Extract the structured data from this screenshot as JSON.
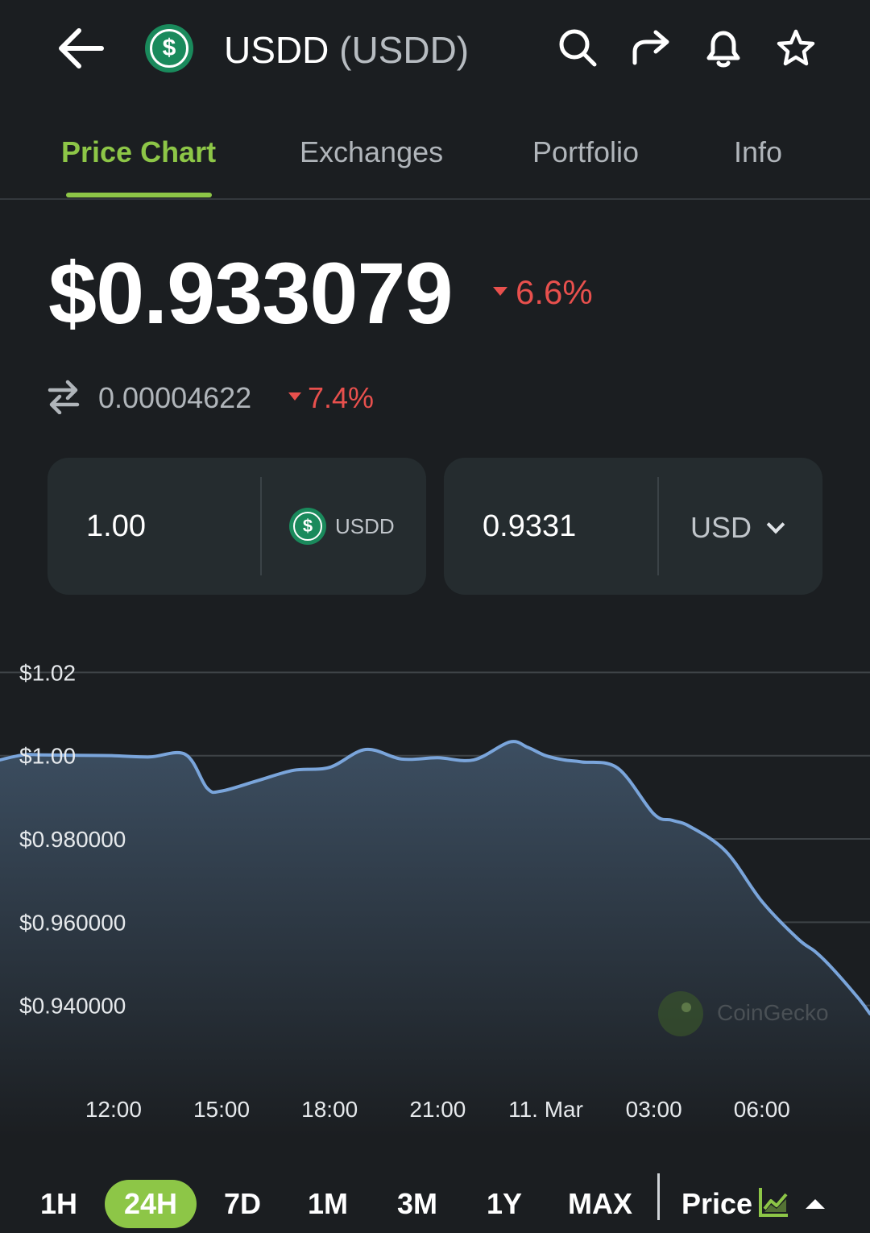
{
  "header": {
    "coin_name": "USDD",
    "coin_symbol": "(USDD)",
    "logo_glyph": "$",
    "icons": [
      "back-arrow-icon",
      "search-icon",
      "share-icon",
      "bell-icon",
      "star-icon"
    ]
  },
  "tabs": [
    {
      "label": "Price Chart",
      "active": true
    },
    {
      "label": "Exchanges",
      "active": false
    },
    {
      "label": "Portfolio",
      "active": false
    },
    {
      "label": "Info",
      "active": false
    }
  ],
  "price": {
    "value": "$0.933079",
    "change": "6.6%",
    "direction": "down",
    "btc_value": "΀0.00004622",
    "btc_change": "7.4%"
  },
  "converter": {
    "from_amount": "1.00",
    "from_unit": "USDD",
    "to_amount": "0.9331",
    "to_currency": "USD"
  },
  "chart_data": {
    "type": "area",
    "y_ticks": [
      {
        "value": 1.02,
        "label": "$1.02"
      },
      {
        "value": 1.0,
        "label": "$1.00"
      },
      {
        "value": 0.98,
        "label": "$0.980000"
      },
      {
        "value": 0.96,
        "label": "$0.960000"
      },
      {
        "value": 0.94,
        "label": "$0.940000"
      }
    ],
    "x_ticks": [
      {
        "h": 12,
        "label": "12:00"
      },
      {
        "h": 15,
        "label": "15:00"
      },
      {
        "h": 18,
        "label": "18:00"
      },
      {
        "h": 21,
        "label": "21:00"
      },
      {
        "h": 24,
        "label": "11. Mar"
      },
      {
        "h": 27,
        "label": "03:00"
      },
      {
        "h": 30,
        "label": "06:00"
      }
    ],
    "x": [
      8.85,
      9.5,
      10,
      11,
      12,
      13,
      14,
      14.6,
      15,
      16,
      17,
      18,
      19,
      20,
      21,
      22,
      23,
      23.5,
      24,
      24.5,
      25,
      26,
      27,
      27.5,
      28,
      29,
      30,
      31,
      31.5,
      32,
      32.7,
      33
    ],
    "values": [
      0.999,
      1.0002,
      1.0002,
      1.0001,
      1.0,
      0.9997,
      1.0003,
      0.9922,
      0.9915,
      0.994,
      0.9965,
      0.9972,
      1.0015,
      0.9992,
      0.9995,
      0.999,
      1.0033,
      1.002,
      1.0,
      0.999,
      0.9985,
      0.997,
      0.986,
      0.9845,
      0.983,
      0.977,
      0.965,
      0.956,
      0.9528,
      0.9485,
      0.9415,
      0.938
    ],
    "xlim": [
      8.85,
      33
    ],
    "ylim": [
      0.926,
      1.0286
    ],
    "line_color": "#7aa5db",
    "grid": true,
    "watermark": "CoinGecko"
  },
  "ranges": [
    {
      "label": "1H",
      "active": false
    },
    {
      "label": "24H",
      "active": true
    },
    {
      "label": "7D",
      "active": false
    },
    {
      "label": "1M",
      "active": false
    },
    {
      "label": "3M",
      "active": false
    },
    {
      "label": "1Y",
      "active": false
    },
    {
      "label": "MAX",
      "active": false
    }
  ],
  "chart_mode": {
    "label": "Price"
  }
}
